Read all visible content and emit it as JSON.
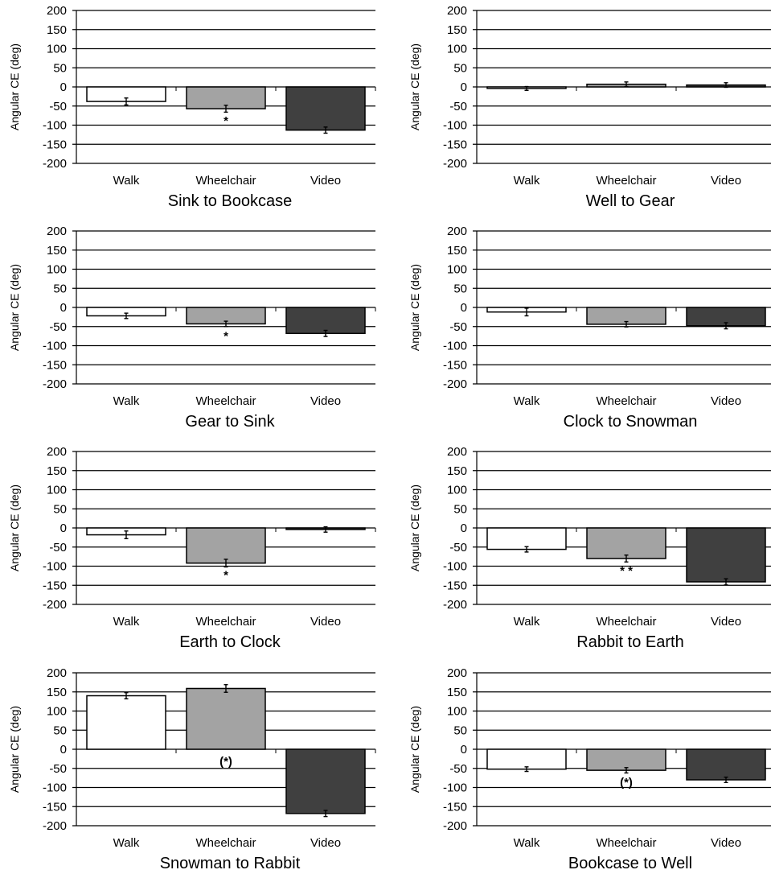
{
  "chart_data": [
    {
      "type": "bar",
      "title": "Sink to Bookcase",
      "ylabel": "Angular CE (deg)",
      "xlabel": "",
      "ylim": [
        -200,
        200
      ],
      "yticks": [
        "200",
        "150",
        "100",
        "50",
        "0",
        "-50",
        "-100",
        "-150",
        "-200"
      ],
      "categories": [
        "Walk",
        "Wheelchair",
        "Video"
      ],
      "values": [
        -38,
        -57,
        -113
      ],
      "errors": [
        9,
        9,
        8
      ],
      "significance": [
        "",
        "*",
        ""
      ],
      "bar_colors": [
        "#ffffff",
        "#a3a3a3",
        "#404040"
      ],
      "grid": "horizontal"
    },
    {
      "type": "bar",
      "title": "Well to Gear",
      "ylabel": "Angular CE (deg)",
      "xlabel": "",
      "ylim": [
        -200,
        200
      ],
      "yticks": [
        "200",
        "150",
        "100",
        "50",
        "0",
        "-50",
        "-100",
        "-150",
        "-200"
      ],
      "categories": [
        "Walk",
        "Wheelchair",
        "Video"
      ],
      "values": [
        -4,
        7,
        5
      ],
      "errors": [
        5,
        6,
        6
      ],
      "significance": [
        "",
        "",
        ""
      ],
      "bar_colors": [
        "#ffffff",
        "#a3a3a3",
        "#404040"
      ],
      "grid": "horizontal"
    },
    {
      "type": "bar",
      "title": "Gear to Sink",
      "ylabel": "Angular CE (deg)",
      "xlabel": "",
      "ylim": [
        -200,
        200
      ],
      "yticks": [
        "200",
        "150",
        "100",
        "50",
        "0",
        "-50",
        "-100",
        "-150",
        "-200"
      ],
      "categories": [
        "Walk",
        "Wheelchair",
        "Video"
      ],
      "values": [
        -22,
        -43,
        -68
      ],
      "errors": [
        7,
        7,
        8
      ],
      "significance": [
        "",
        "*",
        ""
      ],
      "bar_colors": [
        "#ffffff",
        "#a3a3a3",
        "#404040"
      ],
      "grid": "horizontal"
    },
    {
      "type": "bar",
      "title": "Clock to Snowman",
      "ylabel": "Angular CE (deg)",
      "xlabel": "",
      "ylim": [
        -200,
        200
      ],
      "yticks": [
        "200",
        "150",
        "100",
        "50",
        "0",
        "-50",
        "-100",
        "-150",
        "-200"
      ],
      "categories": [
        "Walk",
        "Wheelchair",
        "Video"
      ],
      "values": [
        -12,
        -44,
        -48
      ],
      "errors": [
        10,
        7,
        8
      ],
      "significance": [
        "",
        "",
        ""
      ],
      "bar_colors": [
        "#ffffff",
        "#a3a3a3",
        "#404040"
      ],
      "grid": "horizontal"
    },
    {
      "type": "bar",
      "title": "Earth to Clock",
      "ylabel": "Angular CE (deg)",
      "xlabel": "",
      "ylim": [
        -200,
        200
      ],
      "yticks": [
        "200",
        "150",
        "100",
        "50",
        "0",
        "-50",
        "-100",
        "-150",
        "-200"
      ],
      "categories": [
        "Walk",
        "Wheelchair",
        "Video"
      ],
      "values": [
        -18,
        -92,
        -4
      ],
      "errors": [
        10,
        10,
        7
      ],
      "significance": [
        "",
        "*",
        ""
      ],
      "bar_colors": [
        "#ffffff",
        "#a3a3a3",
        "#404040"
      ],
      "grid": "horizontal"
    },
    {
      "type": "bar",
      "title": "Rabbit to Earth",
      "ylabel": "Angular CE (deg)",
      "xlabel": "",
      "ylim": [
        -200,
        200
      ],
      "yticks": [
        "200",
        "150",
        "100",
        "50",
        "0",
        "-50",
        "-100",
        "-150",
        "-200"
      ],
      "categories": [
        "Walk",
        "Wheelchair",
        "Video"
      ],
      "values": [
        -56,
        -80,
        -141
      ],
      "errors": [
        7,
        9,
        8
      ],
      "significance": [
        "",
        "* *",
        ""
      ],
      "bar_colors": [
        "#ffffff",
        "#a3a3a3",
        "#404040"
      ],
      "grid": "horizontal"
    },
    {
      "type": "bar",
      "title": "Snowman to Rabbit",
      "ylabel": "Angular CE (deg)",
      "xlabel": "",
      "ylim": [
        -200,
        200
      ],
      "yticks": [
        "200",
        "150",
        "100",
        "50",
        "0",
        "-50",
        "-100",
        "-150",
        "-200"
      ],
      "categories": [
        "Walk",
        "Wheelchair",
        "Video"
      ],
      "values": [
        140,
        159,
        -168
      ],
      "errors": [
        8,
        10,
        8
      ],
      "significance": [
        "",
        "(*)",
        ""
      ],
      "bar_colors": [
        "#ffffff",
        "#a3a3a3",
        "#404040"
      ],
      "grid": "horizontal"
    },
    {
      "type": "bar",
      "title": "Bookcase to Well",
      "ylabel": "Angular CE (deg)",
      "xlabel": "",
      "ylim": [
        -200,
        200
      ],
      "yticks": [
        "200",
        "150",
        "100",
        "50",
        "0",
        "-50",
        "-100",
        "-150",
        "-200"
      ],
      "categories": [
        "Walk",
        "Wheelchair",
        "Video"
      ],
      "values": [
        -52,
        -55,
        -80
      ],
      "errors": [
        6,
        7,
        7
      ],
      "significance": [
        "",
        "(*)",
        ""
      ],
      "bar_colors": [
        "#ffffff",
        "#a3a3a3",
        "#404040"
      ],
      "grid": "horizontal"
    }
  ]
}
